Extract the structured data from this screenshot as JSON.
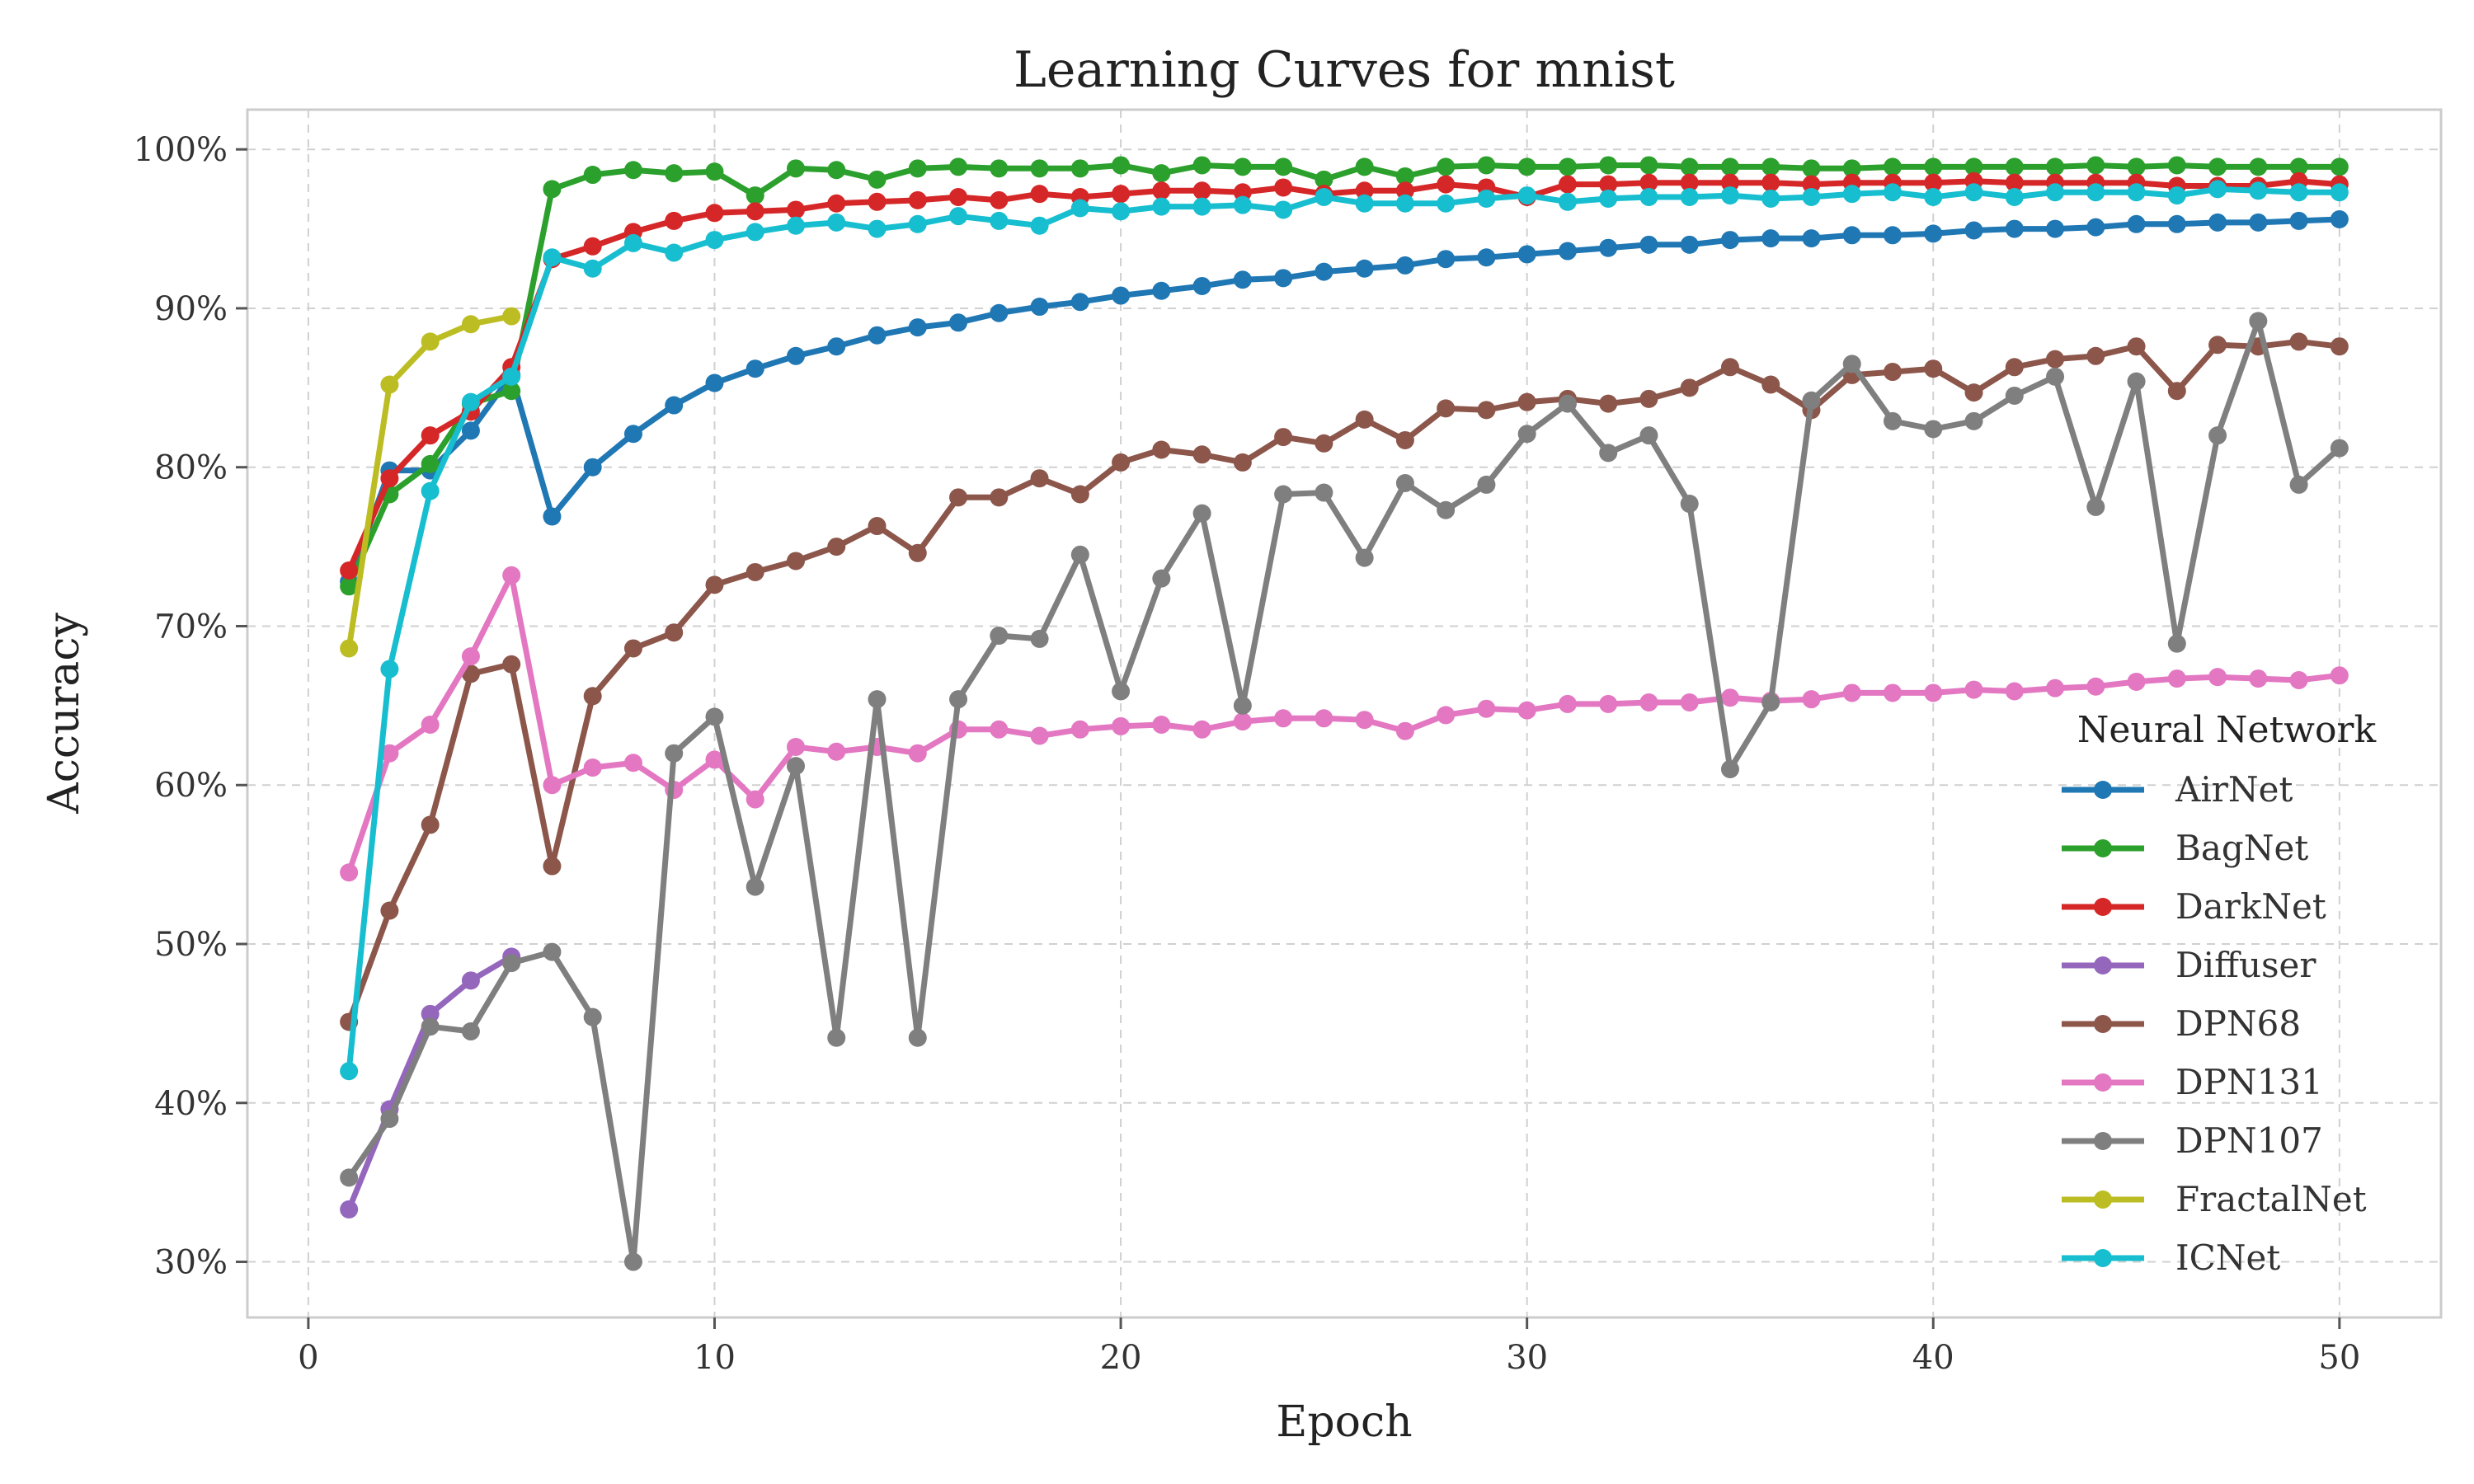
{
  "chart_data": {
    "type": "line",
    "title": "Learning Curves for mnist",
    "xlabel": "Epoch",
    "ylabel": "Accuracy",
    "xlim": [
      -1.5,
      52.5
    ],
    "ylim": [
      26.5,
      102.5
    ],
    "xticks": [
      0,
      10,
      20,
      30,
      40,
      50
    ],
    "yticks": [
      30,
      40,
      50,
      60,
      70,
      80,
      90,
      100
    ],
    "ytick_format": "percent",
    "grid": true,
    "legend": {
      "title": "Neural Network",
      "position": "right-center"
    },
    "series": [
      {
        "name": "AirNet",
        "color": "#1f77b4",
        "x": [
          1,
          2,
          3,
          4,
          5,
          6,
          7,
          8,
          9,
          10,
          11,
          12,
          13,
          14,
          15,
          16,
          17,
          18,
          19,
          20,
          21,
          22,
          23,
          24,
          25,
          26,
          27,
          28,
          29,
          30,
          31,
          32,
          33,
          34,
          35,
          36,
          37,
          38,
          39,
          40,
          41,
          42,
          43,
          44,
          45,
          46,
          47,
          48,
          49,
          50
        ],
        "values": [
          72.8,
          79.8,
          79.8,
          82.3,
          85.8,
          76.9,
          80.0,
          82.1,
          83.9,
          85.3,
          86.2,
          87.0,
          87.6,
          88.3,
          88.8,
          89.1,
          89.7,
          90.1,
          90.4,
          90.8,
          91.1,
          91.4,
          91.8,
          91.9,
          92.3,
          92.5,
          92.7,
          93.1,
          93.2,
          93.4,
          93.6,
          93.8,
          94.0,
          94.0,
          94.3,
          94.4,
          94.4,
          94.6,
          94.6,
          94.7,
          94.9,
          95.0,
          95.0,
          95.1,
          95.3,
          95.3,
          95.4,
          95.4,
          95.5,
          95.6
        ]
      },
      {
        "name": "BagNet",
        "color": "#2ca02c",
        "x": [
          1,
          2,
          3,
          4,
          5,
          6,
          7,
          8,
          9,
          10,
          11,
          12,
          13,
          14,
          15,
          16,
          17,
          18,
          19,
          20,
          21,
          22,
          23,
          24,
          25,
          26,
          27,
          28,
          29,
          30,
          31,
          32,
          33,
          34,
          35,
          36,
          37,
          38,
          39,
          40,
          41,
          42,
          43,
          44,
          45,
          46,
          47,
          48,
          49,
          50
        ],
        "values": [
          72.5,
          78.3,
          80.2,
          84.0,
          84.8,
          97.5,
          98.4,
          98.7,
          98.5,
          98.6,
          97.1,
          98.8,
          98.7,
          98.1,
          98.8,
          98.9,
          98.8,
          98.8,
          98.8,
          99.0,
          98.5,
          99.0,
          98.9,
          98.9,
          98.1,
          98.9,
          98.3,
          98.9,
          99.0,
          98.9,
          98.9,
          99.0,
          99.0,
          98.9,
          98.9,
          98.9,
          98.8,
          98.8,
          98.9,
          98.9,
          98.9,
          98.9,
          98.9,
          99.0,
          98.9,
          99.0,
          98.9,
          98.9,
          98.9,
          98.9
        ]
      },
      {
        "name": "DarkNet",
        "color": "#d62728",
        "x": [
          1,
          2,
          3,
          4,
          5,
          6,
          7,
          8,
          9,
          10,
          11,
          12,
          13,
          14,
          15,
          16,
          17,
          18,
          19,
          20,
          21,
          22,
          23,
          24,
          25,
          26,
          27,
          28,
          29,
          30,
          31,
          32,
          33,
          34,
          35,
          36,
          37,
          38,
          39,
          40,
          41,
          42,
          43,
          44,
          45,
          46,
          47,
          48,
          49,
          50
        ],
        "values": [
          73.5,
          79.3,
          82.0,
          83.5,
          86.3,
          93.1,
          93.9,
          94.8,
          95.5,
          96.0,
          96.1,
          96.2,
          96.6,
          96.7,
          96.8,
          97.0,
          96.8,
          97.2,
          97.0,
          97.2,
          97.4,
          97.4,
          97.3,
          97.6,
          97.2,
          97.4,
          97.4,
          97.8,
          97.6,
          97.0,
          97.8,
          97.8,
          97.9,
          97.9,
          97.9,
          97.9,
          97.8,
          97.9,
          97.9,
          97.9,
          98.0,
          97.9,
          97.9,
          97.9,
          97.9,
          97.7,
          97.7,
          97.7,
          98.0,
          97.8
        ]
      },
      {
        "name": "Diffuser",
        "color": "#9467bd",
        "x": [
          1,
          2,
          3,
          4,
          5
        ],
        "values": [
          33.3,
          39.6,
          45.6,
          47.7,
          49.2
        ]
      },
      {
        "name": "DPN68",
        "color": "#8c564b",
        "x": [
          1,
          2,
          3,
          4,
          5,
          6,
          7,
          8,
          9,
          10,
          11,
          12,
          13,
          14,
          15,
          16,
          17,
          18,
          19,
          20,
          21,
          22,
          23,
          24,
          25,
          26,
          27,
          28,
          29,
          30,
          31,
          32,
          33,
          34,
          35,
          36,
          37,
          38,
          39,
          40,
          41,
          42,
          43,
          44,
          45,
          46,
          47,
          48,
          49,
          50
        ],
        "values": [
          45.1,
          52.1,
          57.5,
          67.0,
          67.6,
          54.9,
          65.6,
          68.6,
          69.6,
          72.6,
          73.4,
          74.1,
          75.0,
          76.3,
          74.6,
          78.1,
          78.1,
          79.3,
          78.3,
          80.3,
          81.1,
          80.8,
          80.3,
          81.9,
          81.5,
          83.0,
          81.7,
          83.7,
          83.6,
          84.1,
          84.3,
          84.0,
          84.3,
          85.0,
          86.3,
          85.2,
          83.6,
          85.8,
          86.0,
          86.2,
          84.7,
          86.3,
          86.8,
          87.0,
          87.6,
          84.8,
          87.7,
          87.6,
          87.9,
          87.6
        ]
      },
      {
        "name": "DPN131",
        "color": "#e377c2",
        "x": [
          1,
          2,
          3,
          4,
          5,
          6,
          7,
          8,
          9,
          10,
          11,
          12,
          13,
          14,
          15,
          16,
          17,
          18,
          19,
          20,
          21,
          22,
          23,
          24,
          25,
          26,
          27,
          28,
          29,
          30,
          31,
          32,
          33,
          34,
          35,
          36,
          37,
          38,
          39,
          40,
          41,
          42,
          43,
          44,
          45,
          46,
          47,
          48,
          49,
          50
        ],
        "values": [
          54.5,
          62.0,
          63.8,
          68.1,
          73.2,
          60.0,
          61.1,
          61.4,
          59.7,
          61.6,
          59.1,
          62.4,
          62.1,
          62.4,
          62.0,
          63.5,
          63.5,
          63.1,
          63.5,
          63.7,
          63.8,
          63.5,
          64.0,
          64.2,
          64.2,
          64.1,
          63.4,
          64.4,
          64.8,
          64.7,
          65.1,
          65.1,
          65.2,
          65.2,
          65.5,
          65.3,
          65.4,
          65.8,
          65.8,
          65.8,
          66.0,
          65.9,
          66.1,
          66.2,
          66.5,
          66.7,
          66.8,
          66.7,
          66.6,
          66.9
        ]
      },
      {
        "name": "DPN107",
        "color": "#7f7f7f",
        "x": [
          1,
          2,
          3,
          4,
          5,
          6,
          7,
          8,
          9,
          10,
          11,
          12,
          13,
          14,
          15,
          16,
          17,
          18,
          19,
          20,
          21,
          22,
          23,
          24,
          25,
          26,
          27,
          28,
          29,
          30,
          31,
          32,
          33,
          34,
          35,
          36,
          37,
          38,
          39,
          40,
          41,
          42,
          43,
          44,
          45,
          46,
          47,
          48,
          49,
          50
        ],
        "values": [
          35.3,
          39.0,
          44.8,
          44.5,
          48.8,
          49.5,
          45.4,
          30.0,
          62.0,
          64.3,
          53.6,
          61.2,
          44.1,
          65.4,
          44.1,
          65.4,
          69.4,
          69.2,
          74.5,
          65.9,
          73.0,
          77.1,
          65.0,
          78.3,
          78.4,
          74.3,
          79.0,
          77.3,
          78.9,
          82.1,
          84.0,
          80.9,
          82.0,
          77.7,
          61.0,
          65.2,
          84.2,
          86.5,
          82.9,
          82.4,
          82.9,
          84.5,
          85.7,
          77.5,
          85.4,
          68.9,
          82.0,
          89.2,
          78.9,
          81.2
        ]
      },
      {
        "name": "FractalNet",
        "color": "#bcbd22",
        "x": [
          1,
          2,
          3,
          4,
          5
        ],
        "values": [
          68.6,
          85.2,
          87.9,
          89.0,
          89.5
        ]
      },
      {
        "name": "ICNet",
        "color": "#17becf",
        "x": [
          1,
          2,
          3,
          4,
          5,
          6,
          7,
          8,
          9,
          10,
          11,
          12,
          13,
          14,
          15,
          16,
          17,
          18,
          19,
          20,
          21,
          22,
          23,
          24,
          25,
          26,
          27,
          28,
          29,
          30,
          31,
          32,
          33,
          34,
          35,
          36,
          37,
          38,
          39,
          40,
          41,
          42,
          43,
          44,
          45,
          46,
          47,
          48,
          49,
          50
        ],
        "values": [
          42.0,
          67.3,
          78.5,
          84.1,
          85.7,
          93.2,
          92.5,
          94.1,
          93.5,
          94.3,
          94.8,
          95.2,
          95.4,
          95.0,
          95.3,
          95.8,
          95.5,
          95.2,
          96.3,
          96.1,
          96.4,
          96.4,
          96.5,
          96.2,
          97.0,
          96.6,
          96.6,
          96.6,
          96.9,
          97.1,
          96.7,
          96.9,
          97.0,
          97.0,
          97.1,
          96.9,
          97.0,
          97.2,
          97.3,
          97.0,
          97.3,
          97.0,
          97.3,
          97.3,
          97.3,
          97.1,
          97.5,
          97.4,
          97.3,
          97.3
        ]
      }
    ]
  }
}
